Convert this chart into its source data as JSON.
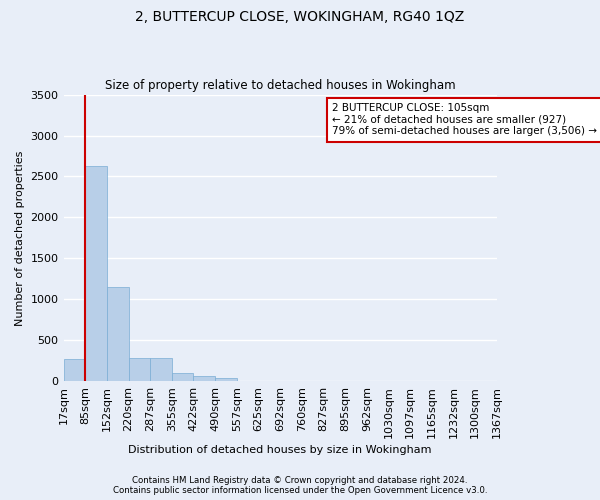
{
  "title": "2, BUTTERCUP CLOSE, WOKINGHAM, RG40 1QZ",
  "subtitle": "Size of property relative to detached houses in Wokingham",
  "xlabel": "Distribution of detached houses by size in Wokingham",
  "ylabel": "Number of detached properties",
  "bar_values": [
    275,
    2630,
    1150,
    285,
    285,
    95,
    60,
    40,
    0,
    0,
    0,
    0,
    0,
    0,
    0,
    0,
    0,
    0,
    0,
    0
  ],
  "bar_labels": [
    "17sqm",
    "85sqm",
    "152sqm",
    "220sqm",
    "287sqm",
    "355sqm",
    "422sqm",
    "490sqm",
    "557sqm",
    "625sqm",
    "692sqm",
    "760sqm",
    "827sqm",
    "895sqm",
    "962sqm",
    "1030sqm",
    "1097sqm",
    "1165sqm",
    "1232sqm",
    "1300sqm",
    "1367sqm"
  ],
  "bar_color": "#b8cfe8",
  "bar_edge_color": "#7aadd4",
  "property_line_x": 0.5,
  "property_line_color": "#cc0000",
  "annotation_text": "2 BUTTERCUP CLOSE: 105sqm\n← 21% of detached houses are smaller (927)\n79% of semi-detached houses are larger (3,506) →",
  "annotation_box_color": "white",
  "annotation_box_edge_color": "#cc0000",
  "ylim": [
    0,
    3500
  ],
  "yticks": [
    0,
    500,
    1000,
    1500,
    2000,
    2500,
    3000,
    3500
  ],
  "background_color": "#e8eef8",
  "grid_color": "white",
  "footer_line1": "Contains HM Land Registry data © Crown copyright and database right 2024.",
  "footer_line2": "Contains public sector information licensed under the Open Government Licence v3.0."
}
